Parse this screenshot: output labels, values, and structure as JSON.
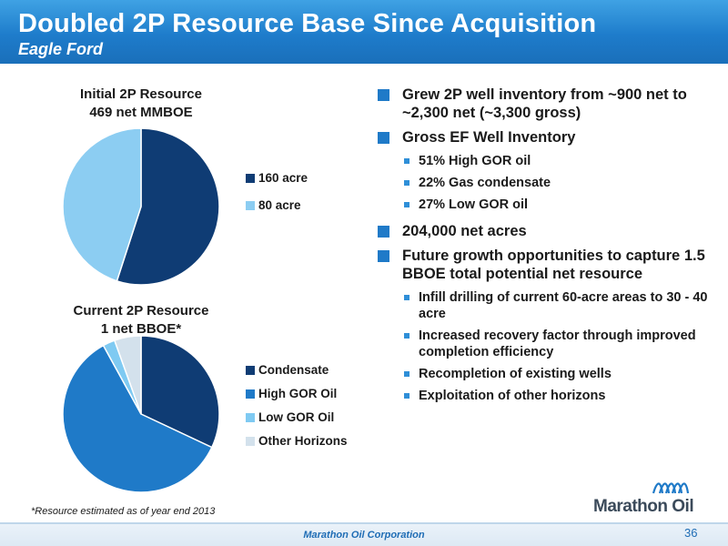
{
  "header": {
    "title": "Doubled 2P Resource Base Since Acquisition",
    "subtitle": "Eagle Ford"
  },
  "chart_data": [
    {
      "type": "pie",
      "title": "Initial 2P Resource",
      "subtitle": "469 net MMBOE",
      "categories": [
        "160 acre",
        "80 acre"
      ],
      "values": [
        55,
        45
      ],
      "colors": [
        "#0f3c74",
        "#8ccdf2"
      ],
      "legend": "right"
    },
    {
      "type": "pie",
      "title": "Current 2P Resource",
      "subtitle": "1 net BBOE*",
      "categories": [
        "Condensate",
        "High GOR Oil",
        "Low GOR Oil",
        "Other Horizons"
      ],
      "values": [
        32,
        60,
        2.5,
        5.5
      ],
      "colors": [
        "#0f3c74",
        "#1f7ac8",
        "#7fcaf2",
        "#d3e1ec"
      ],
      "legend": "right"
    }
  ],
  "bullets": [
    {
      "text": "Grew 2P well inventory from ~900 net to ~2,300 net (~3,300 gross)",
      "sub": []
    },
    {
      "text": "Gross EF Well Inventory",
      "sub": [
        "51% High GOR oil",
        "22% Gas condensate",
        "27% Low GOR oil"
      ]
    },
    {
      "text": "204,000 net acres",
      "sub": []
    },
    {
      "text": "Future growth opportunities to capture 1.5 BBOE total potential net resource",
      "sub": [
        "Infill drilling of current 60-acre areas to 30 - 40 acre",
        "Increased recovery factor through improved completion efficiency",
        "Recompletion of existing wells",
        "Exploitation of other horizons"
      ]
    }
  ],
  "footnote": "*Resource estimated as of year end 2013",
  "logo": {
    "name": "Marathon Oil"
  },
  "footer": {
    "company": "Marathon Oil Corporation",
    "page": "36"
  }
}
